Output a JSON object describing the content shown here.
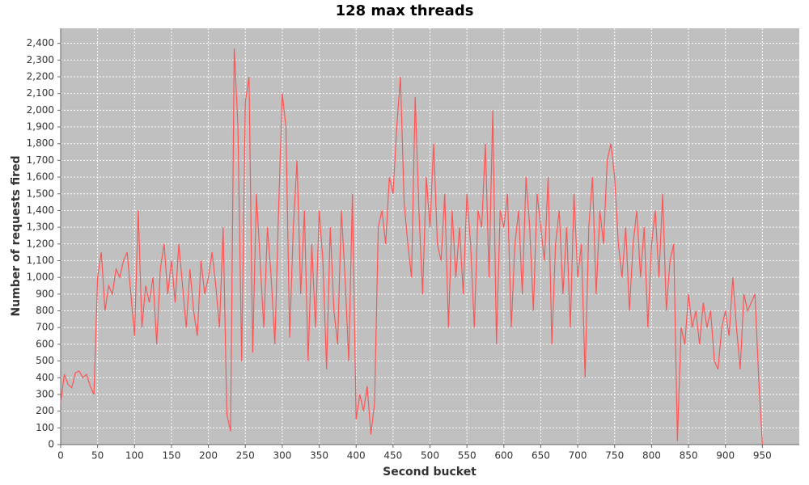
{
  "chart_data": {
    "type": "line",
    "title": "128 max threads",
    "x_label": "Second bucket",
    "y_label": "Number of requests fired",
    "color": "#ff5555",
    "grid": true,
    "xlim": [
      0,
      1000
    ],
    "ylim": [
      0,
      2490
    ],
    "xticks": [
      0,
      50,
      100,
      150,
      200,
      250,
      300,
      350,
      400,
      450,
      500,
      550,
      600,
      650,
      700,
      750,
      800,
      850,
      900,
      950
    ],
    "yticks": [
      0,
      100,
      200,
      300,
      400,
      500,
      600,
      700,
      800,
      900,
      {
        "value": 1000,
        "label": "1,000"
      },
      {
        "value": 1100,
        "label": "1,100"
      },
      {
        "value": 1200,
        "label": "1,200"
      },
      {
        "value": 1300,
        "label": "1,300"
      },
      {
        "value": 1400,
        "label": "1,400"
      },
      {
        "value": 1500,
        "label": "1,500"
      },
      {
        "value": 1600,
        "label": "1,600"
      },
      {
        "value": 1700,
        "label": "1,700"
      },
      {
        "value": 1800,
        "label": "1,800"
      },
      {
        "value": 1900,
        "label": "1,900"
      },
      {
        "value": 2000,
        "label": "2,000"
      },
      {
        "value": 2100,
        "label": "2,100"
      },
      {
        "value": 2200,
        "label": "2,200"
      },
      {
        "value": 2300,
        "label": "2,300"
      },
      {
        "value": 2400,
        "label": "2,400"
      }
    ],
    "x": [
      0,
      5,
      10,
      15,
      20,
      25,
      30,
      35,
      40,
      45,
      50,
      55,
      60,
      65,
      70,
      75,
      80,
      85,
      90,
      95,
      100,
      105,
      110,
      115,
      120,
      125,
      130,
      135,
      140,
      145,
      150,
      155,
      160,
      165,
      170,
      175,
      180,
      185,
      190,
      195,
      200,
      205,
      210,
      215,
      220,
      225,
      230,
      235,
      240,
      245,
      250,
      255,
      260,
      265,
      270,
      275,
      280,
      285,
      290,
      295,
      300,
      305,
      310,
      315,
      320,
      325,
      330,
      335,
      340,
      345,
      350,
      355,
      360,
      365,
      370,
      375,
      380,
      385,
      390,
      395,
      400,
      405,
      410,
      415,
      420,
      425,
      430,
      435,
      440,
      445,
      450,
      455,
      460,
      465,
      470,
      475,
      480,
      485,
      490,
      495,
      500,
      505,
      510,
      515,
      520,
      525,
      530,
      535,
      540,
      545,
      550,
      555,
      560,
      565,
      570,
      575,
      580,
      585,
      590,
      595,
      600,
      605,
      610,
      615,
      620,
      625,
      630,
      635,
      640,
      645,
      650,
      655,
      660,
      665,
      670,
      675,
      680,
      685,
      690,
      695,
      700,
      705,
      710,
      715,
      720,
      725,
      730,
      735,
      740,
      745,
      750,
      755,
      760,
      765,
      770,
      775,
      780,
      785,
      790,
      795,
      800,
      805,
      810,
      815,
      820,
      825,
      830,
      835,
      840,
      845,
      850,
      855,
      860,
      865,
      870,
      875,
      880,
      885,
      890,
      895,
      900,
      905,
      910,
      915,
      920,
      925,
      930,
      935,
      940,
      945,
      950
    ],
    "values": [
      250,
      420,
      360,
      340,
      430,
      440,
      400,
      420,
      350,
      300,
      1000,
      1150,
      800,
      950,
      900,
      1050,
      1000,
      1100,
      1150,
      900,
      650,
      1400,
      700,
      950,
      850,
      1000,
      600,
      1050,
      1200,
      900,
      1100,
      850,
      1200,
      950,
      700,
      1050,
      800,
      650,
      1100,
      900,
      1000,
      1150,
      950,
      700,
      1300,
      180,
      80,
      2370,
      1900,
      500,
      2050,
      2200,
      550,
      1500,
      1100,
      700,
      1300,
      1000,
      600,
      1400,
      2100,
      1900,
      640,
      1300,
      1700,
      900,
      1400,
      500,
      1200,
      700,
      1400,
      1100,
      450,
      1300,
      800,
      600,
      1400,
      1000,
      500,
      1500,
      150,
      300,
      200,
      350,
      60,
      250,
      1300,
      1400,
      1200,
      1600,
      1500,
      1900,
      2200,
      1450,
      1200,
      1000,
      2080,
      1400,
      900,
      1600,
      1300,
      1800,
      1200,
      1100,
      1500,
      700,
      1400,
      1000,
      1300,
      900,
      1500,
      1200,
      700,
      1400,
      1300,
      1800,
      1000,
      2000,
      600,
      1400,
      1300,
      1500,
      700,
      1200,
      1400,
      900,
      1600,
      1300,
      800,
      1500,
      1300,
      1100,
      1600,
      600,
      1200,
      1400,
      900,
      1300,
      700,
      1500,
      1000,
      1200,
      400,
      1300,
      1600,
      900,
      1400,
      1200,
      1700,
      1800,
      1600,
      1200,
      1000,
      1300,
      800,
      1200,
      1400,
      1000,
      1300,
      700,
      1200,
      1400,
      1000,
      1500,
      800,
      1100,
      1200,
      20,
      700,
      600,
      900,
      700,
      800,
      600,
      850,
      700,
      800,
      500,
      450,
      700,
      800,
      650,
      1000,
      700,
      450,
      900,
      800,
      850,
      900,
      400,
      0
    ]
  }
}
